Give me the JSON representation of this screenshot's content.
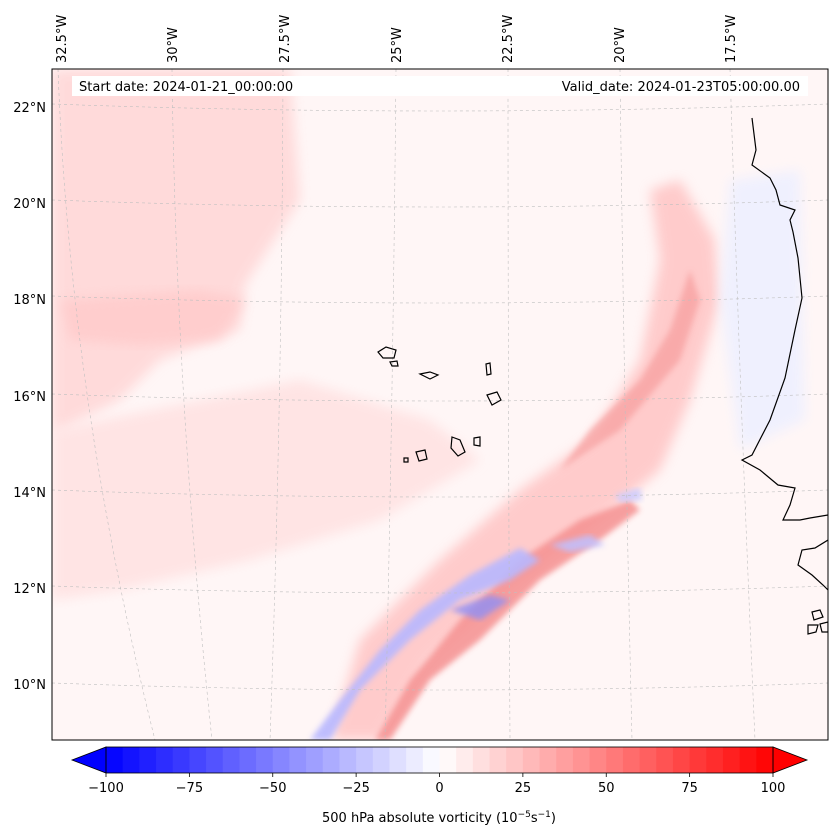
{
  "header": {
    "start_date": "Start date: 2024-01-21_00:00:00",
    "valid_date": "Valid_date: 2024-01-23T05:00:00.00"
  },
  "axes": {
    "longitude_labels": [
      "32.5°W",
      "30°W",
      "27.5°W",
      "25°W",
      "22.5°W",
      "20°W",
      "17.5°W"
    ],
    "latitude_labels": [
      "22°N",
      "20°N",
      "18°N",
      "16°N",
      "14°N",
      "12°N",
      "10°N"
    ]
  },
  "colorbar": {
    "label_main": "500 hPa absolute vorticity (10",
    "label_exp1": "−5",
    "label_mid": "s",
    "label_exp2": "−1",
    "label_end": ")",
    "min": -100,
    "max": 100,
    "ticks": [
      "−100",
      "−75",
      "−50",
      "−25",
      "0",
      "25",
      "50",
      "75",
      "100"
    ],
    "tick_values": [
      -100,
      -75,
      -50,
      -25,
      0,
      25,
      50,
      75,
      100
    ],
    "levels": 40,
    "neg_color": "#0000ff",
    "pos_color": "#ff0000",
    "mid_color": "#ffffff"
  },
  "map": {
    "background_color": "#fff6f6",
    "pos_tint": "#ffd0d0",
    "pos_strong": "#f27a7a",
    "neg_tint": "#c8c8ff",
    "neg_strong": "#8c8cf5",
    "coast_color": "#000000"
  }
}
